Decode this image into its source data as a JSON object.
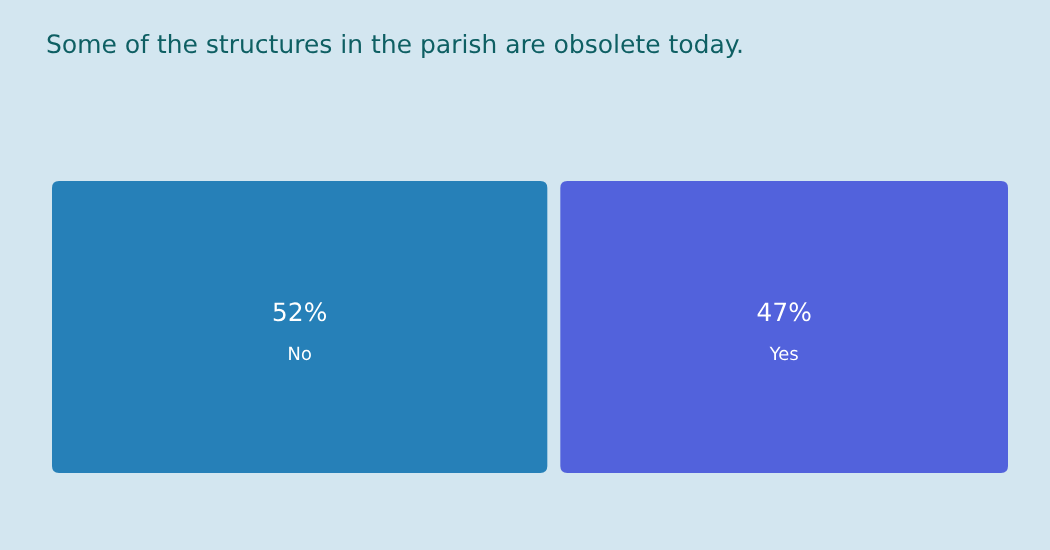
{
  "chart_data": {
    "type": "other",
    "title": "Some of the structures in the parish are obsolete today.",
    "categories": [
      "No",
      "Yes"
    ],
    "values": [
      52,
      47
    ],
    "colors": [
      "#2680b8",
      "#5262dc"
    ],
    "value_labels": [
      "52%",
      "47%"
    ]
  }
}
